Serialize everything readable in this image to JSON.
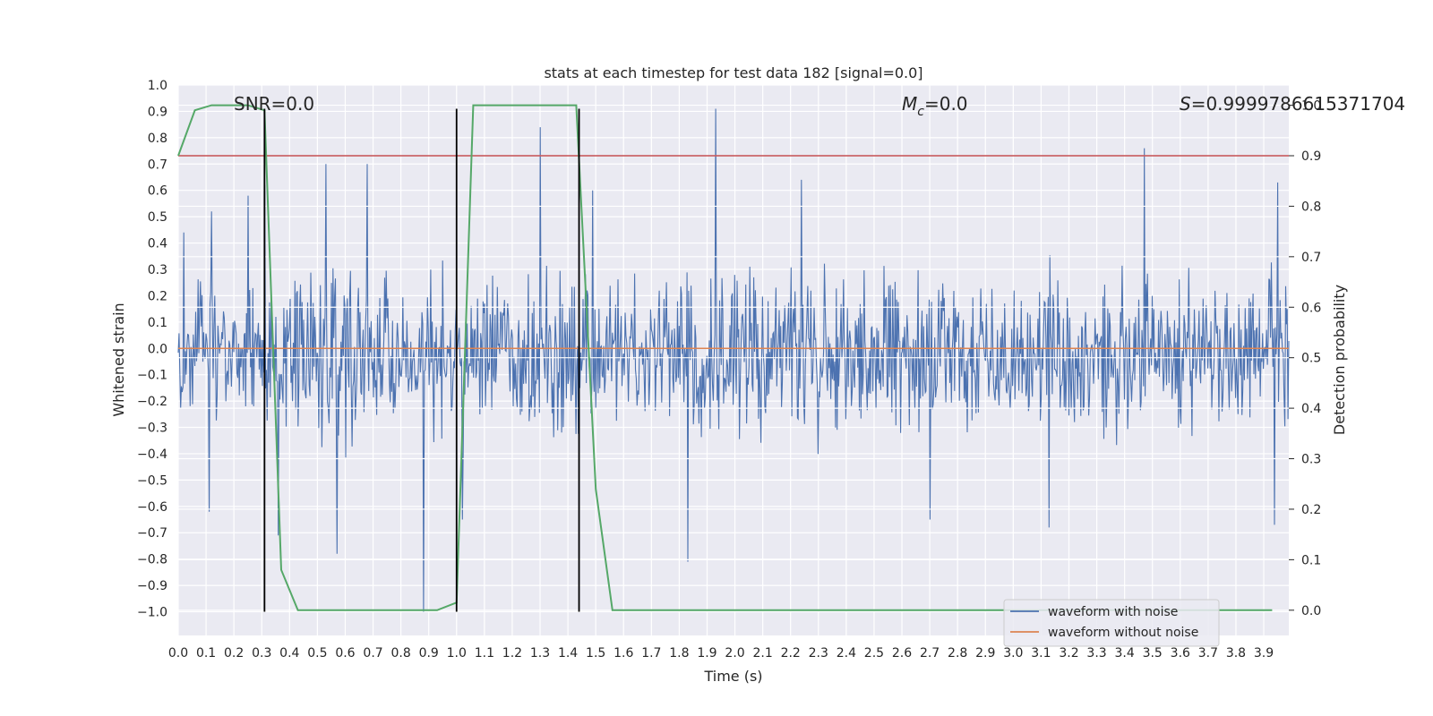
{
  "chart_data": {
    "type": "line",
    "title": "stats at each timestep for test data 182 [signal=0.0]",
    "xlabel": "Time (s)",
    "ylabel": "Whitened strain",
    "y2label": "Detection probability",
    "xlim": [
      0.0,
      3.99
    ],
    "ylim": [
      -1.09,
      1.0
    ],
    "y2lim": [
      -0.05,
      1.04
    ],
    "x_ticks": [
      0.0,
      0.1,
      0.2,
      0.3,
      0.4,
      0.5,
      0.6,
      0.7,
      0.8,
      0.9,
      1.0,
      1.1,
      1.2,
      1.3,
      1.4,
      1.5,
      1.6,
      1.7,
      1.8,
      1.9,
      2.0,
      2.1,
      2.2,
      2.3,
      2.4,
      2.5,
      2.6,
      2.7,
      2.8,
      2.9,
      3.0,
      3.1,
      3.2,
      3.3,
      3.4,
      3.5,
      3.6,
      3.7,
      3.8,
      3.9
    ],
    "x_tick_labels": [
      "0.0",
      "0.1",
      "0.2",
      "0.3",
      "0.4",
      "0.5",
      "0.6",
      "0.7",
      "0.8",
      "0.9",
      "1.0",
      "1.1",
      "1.2",
      "1.3",
      "1.4",
      "1.5",
      "1.6",
      "1.7",
      "1.8",
      "1.9",
      "2.0",
      "2.1",
      "2.2",
      "2.3",
      "2.4",
      "2.5",
      "2.6",
      "2.7",
      "2.8",
      "2.9",
      "3.0",
      "3.1",
      "3.2",
      "3.3",
      "3.4",
      "3.5",
      "3.6",
      "3.7",
      "3.8",
      "3.9"
    ],
    "y_ticks": [
      1.0,
      0.9,
      0.8,
      0.7,
      0.6,
      0.5,
      0.4,
      0.3,
      0.2,
      0.1,
      0.0,
      -0.1,
      -0.2,
      -0.3,
      -0.4,
      -0.5,
      -0.6,
      -0.7,
      -0.8,
      -0.9,
      -1.0
    ],
    "y_tick_labels": [
      "1.0",
      "0.9",
      "0.8",
      "0.7",
      "0.6",
      "0.5",
      "0.4",
      "0.3",
      "0.2",
      "0.1",
      "0.0",
      "−0.1",
      "−0.2",
      "−0.3",
      "−0.4",
      "−0.5",
      "−0.6",
      "−0.7",
      "−0.8",
      "−0.9",
      "−1.0"
    ],
    "y2_ticks": [
      1.0,
      0.9,
      0.8,
      0.7,
      0.6,
      0.5,
      0.4,
      0.3,
      0.2,
      0.1,
      0.0
    ],
    "y2_tick_labels": [
      "1.0",
      "0.9",
      "0.8",
      "0.7",
      "0.6",
      "0.5",
      "0.4",
      "0.3",
      "0.2",
      "0.1",
      "0.0"
    ],
    "grid": true,
    "legend_position": "lower-right",
    "annotations": {
      "snr": "SNR=0.0",
      "mc_symbol": "M",
      "mc_sub": "c",
      "mc_value": "=0.0",
      "s_symbol": "S",
      "s_value": "=0.9999786615371704"
    },
    "series": [
      {
        "name": "waveform with noise",
        "color": "#4c72b0",
        "kind": "noise",
        "typical_range": [
          -0.45,
          0.4
        ],
        "peaks": [
          {
            "x": 0.02,
            "y": 0.44
          },
          {
            "x": 0.12,
            "y": 0.52
          },
          {
            "x": 0.25,
            "y": 0.58
          },
          {
            "x": 0.31,
            "y": 0.62
          },
          {
            "x": 0.53,
            "y": 0.7
          },
          {
            "x": 0.68,
            "y": 0.7
          },
          {
            "x": 0.88,
            "y": 0.64
          },
          {
            "x": 1.3,
            "y": 0.84
          },
          {
            "x": 1.49,
            "y": 0.6
          },
          {
            "x": 1.93,
            "y": 0.91
          },
          {
            "x": 2.24,
            "y": 0.64
          },
          {
            "x": 3.47,
            "y": 0.76
          },
          {
            "x": 3.95,
            "y": 0.63
          },
          {
            "x": 0.11,
            "y": -0.62
          },
          {
            "x": 0.36,
            "y": -0.71
          },
          {
            "x": 0.57,
            "y": -0.78
          },
          {
            "x": 0.88,
            "y": -1.0
          },
          {
            "x": 1.02,
            "y": -0.65
          },
          {
            "x": 1.83,
            "y": -0.81
          },
          {
            "x": 2.7,
            "y": -0.65
          },
          {
            "x": 3.13,
            "y": -0.68
          },
          {
            "x": 3.94,
            "y": -0.67
          }
        ]
      },
      {
        "name": "waveform without noise",
        "color": "#dd8452",
        "kind": "line",
        "x": [
          0.0,
          3.99
        ],
        "y": [
          0.0,
          0.0
        ]
      },
      {
        "color": "#55a868",
        "axis": "right",
        "kind": "line",
        "x": [
          0.0,
          0.06,
          0.12,
          0.18,
          0.25,
          0.31,
          0.37,
          0.43,
          0.5,
          0.56,
          0.62,
          0.68,
          0.75,
          0.81,
          0.87,
          0.93,
          1.0,
          1.06,
          1.12,
          1.18,
          1.25,
          1.31,
          1.37,
          1.43,
          1.5,
          1.56,
          1.62,
          1.68,
          1.75,
          1.81,
          1.87,
          1.93,
          2.0,
          2.06,
          2.12,
          2.18,
          2.25,
          2.31,
          2.37,
          2.43,
          2.5,
          2.56,
          2.62,
          2.68,
          2.75,
          2.81,
          2.87,
          2.93,
          3.0,
          3.06,
          3.12,
          3.18,
          3.25,
          3.31,
          3.37,
          3.43,
          3.5,
          3.56,
          3.62,
          3.68,
          3.75,
          3.81,
          3.87,
          3.93
        ],
        "y": [
          0.9,
          0.99,
          1.0,
          1.0,
          1.0,
          0.99,
          0.08,
          0.0,
          0.0,
          0.0,
          0.0,
          0.0,
          0.0,
          0.0,
          0.0,
          0.0,
          0.015,
          1.0,
          1.0,
          1.0,
          1.0,
          1.0,
          1.0,
          1.0,
          0.24,
          0.0,
          0.0,
          0.0,
          0.0,
          0.0,
          0.0,
          0.0,
          0.0,
          0.0,
          0.0,
          0.0,
          0.0,
          0.0,
          0.0,
          0.0,
          0.0,
          0.0,
          0.0,
          0.0,
          0.0,
          0.0,
          0.0,
          0.0,
          0.0,
          0.0,
          0.0,
          0.0,
          0.0,
          0.0,
          0.0,
          0.0,
          0.0,
          0.0,
          0.0,
          0.0,
          0.0,
          0.0,
          0.0,
          0.0
        ]
      },
      {
        "color": "#c44e52",
        "axis": "right",
        "kind": "hline",
        "y": 0.9
      }
    ],
    "vlines": {
      "color": "#000000",
      "x": [
        0.31,
        1.0,
        1.44
      ],
      "ymin": -1.0,
      "ymax": 0.91
    },
    "legend": [
      "waveform with noise",
      "waveform without noise"
    ]
  }
}
